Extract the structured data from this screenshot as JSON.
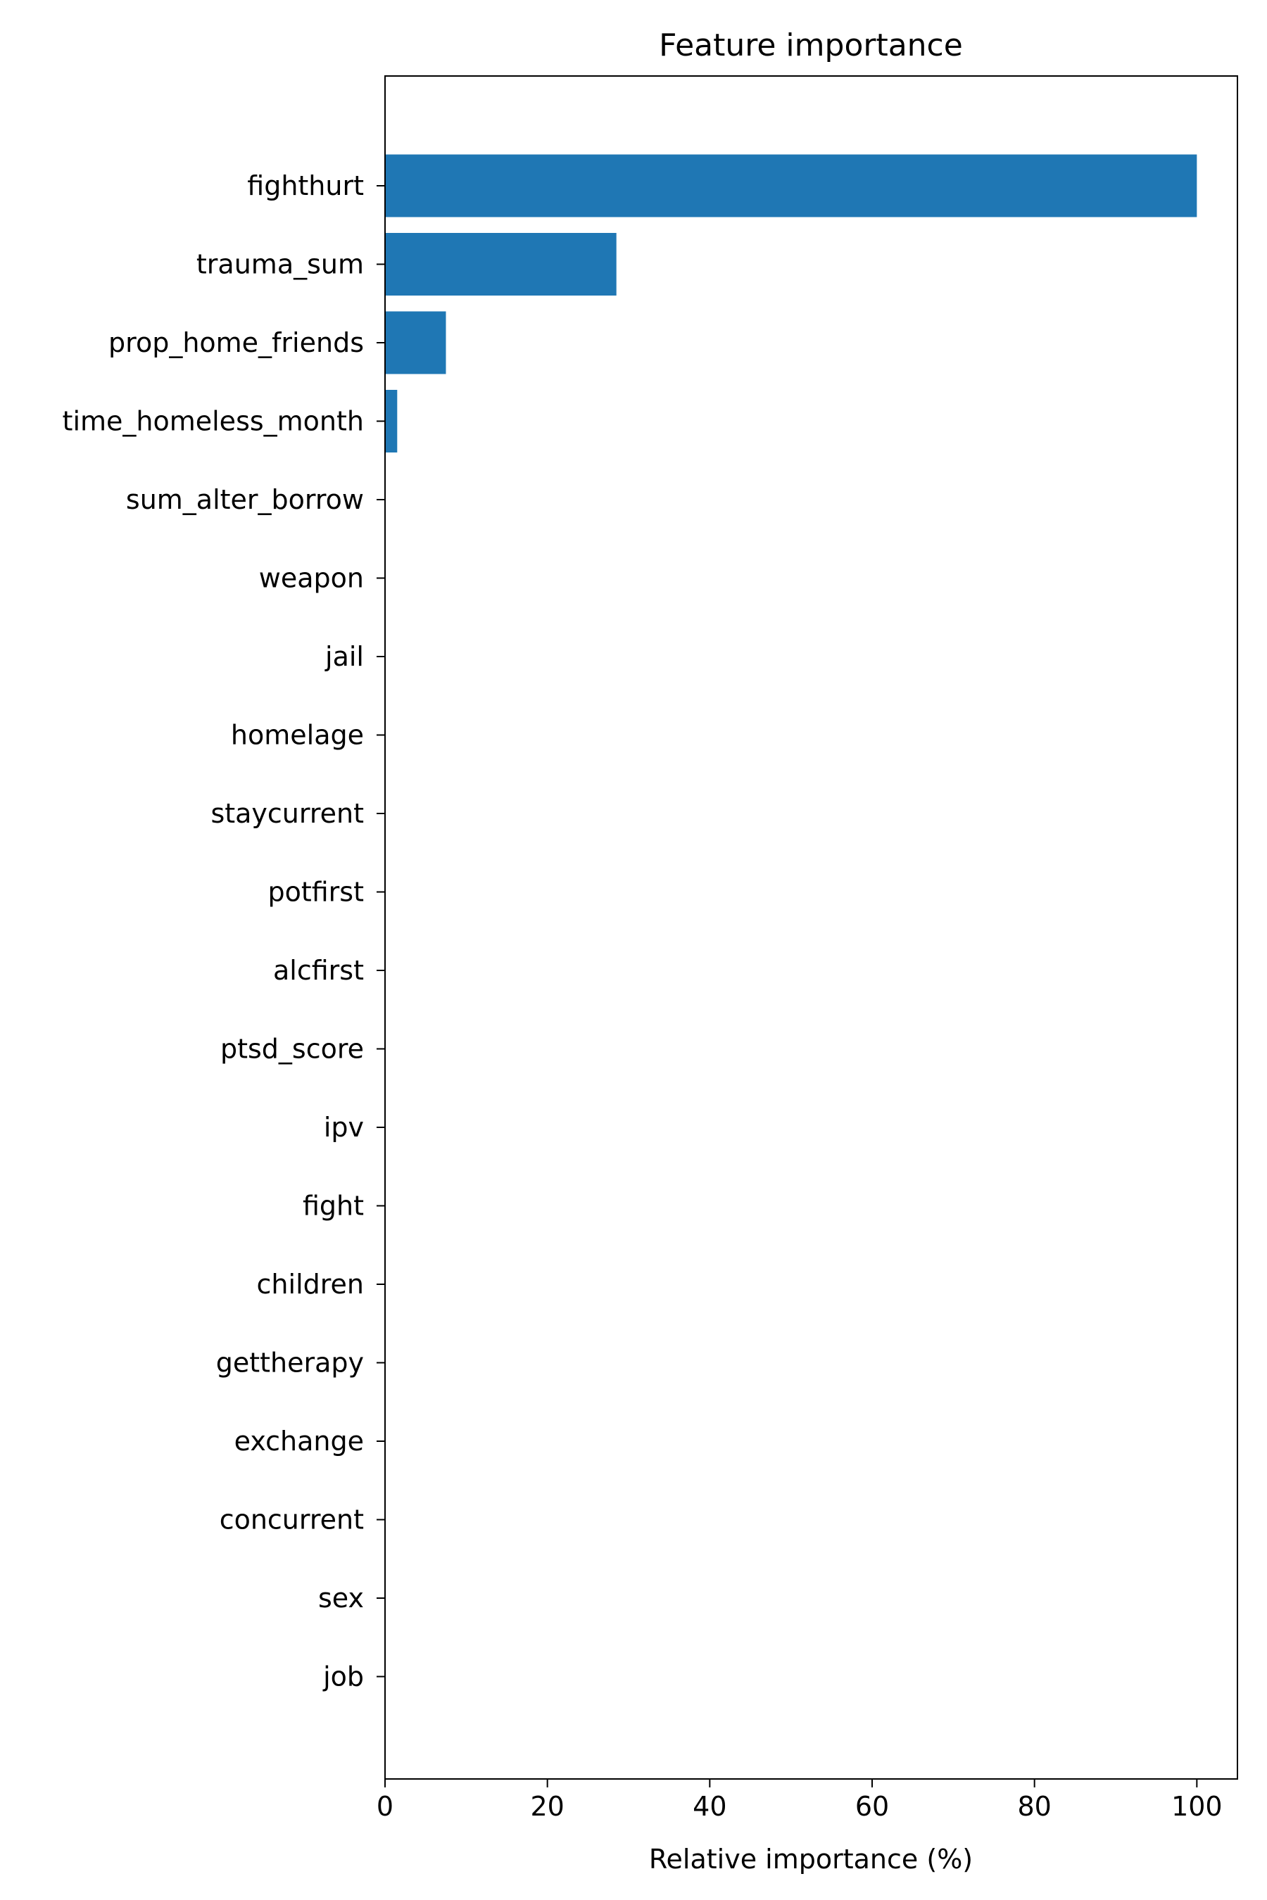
{
  "chart_data": {
    "type": "bar",
    "orientation": "horizontal",
    "title": "Feature importance",
    "xlabel": "Relative importance (%)",
    "ylabel": "",
    "xlim": [
      0,
      105
    ],
    "xticks": [
      0,
      20,
      40,
      60,
      80,
      100
    ],
    "grid": false,
    "legend": "none",
    "bar_color": "#1f77b4",
    "categories": [
      "fighthurt",
      "trauma_sum",
      "prop_home_friends",
      "time_homeless_month",
      "sum_alter_borrow",
      "weapon",
      "jail",
      "homelage",
      "staycurrent",
      "potfirst",
      "alcfirst",
      "ptsd_score",
      "ipv",
      "fight",
      "children",
      "gettherapy",
      "exchange",
      "concurrent",
      "sex",
      "job"
    ],
    "values": [
      100,
      28.5,
      7.5,
      1.5,
      0,
      0,
      0,
      0,
      0,
      0,
      0,
      0,
      0,
      0,
      0,
      0,
      0,
      0,
      0,
      0
    ]
  }
}
